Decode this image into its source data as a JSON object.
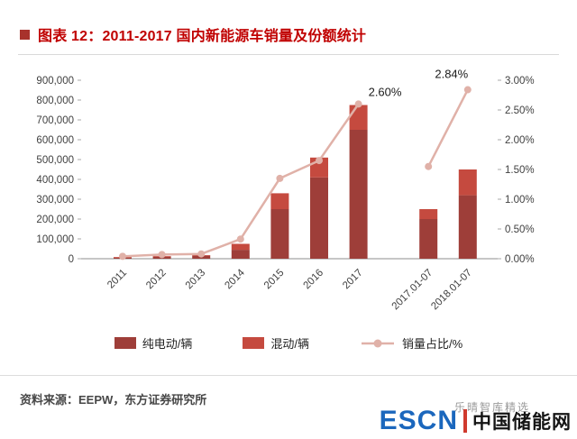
{
  "header": {
    "title": "图表 12：2011-2017 国内新能源车销量及份额统计",
    "accent_color": "#c00000",
    "bullet_color": "#a8322c"
  },
  "chart_data": {
    "type": "bar",
    "subtype": "stacked-bar-with-line",
    "title": "图表 12：2011-2017 国内新能源车销量及份额统计",
    "categories": [
      "2011",
      "2012",
      "2013",
      "2014",
      "2015",
      "2016",
      "2017",
      "2017.01-07",
      "2018.01-07"
    ],
    "series": [
      {
        "name": "纯电动/辆",
        "type": "bar",
        "color": "#9e3e39",
        "values": [
          5700,
          11000,
          15000,
          45000,
          250000,
          410000,
          650000,
          200000,
          320000
        ]
      },
      {
        "name": "混动/辆",
        "type": "bar",
        "color": "#c54a3f",
        "values": [
          2500,
          1800,
          3000,
          30000,
          80000,
          100000,
          125000,
          50000,
          130000
        ]
      }
    ],
    "line_series": {
      "name": "销量占比/%",
      "type": "line",
      "color": "#e0b1a8",
      "axis": "right",
      "break_after_index": 6,
      "values": [
        0.04,
        0.07,
        0.08,
        0.33,
        1.35,
        1.65,
        2.6,
        1.55,
        2.84
      ]
    },
    "annotations": [
      {
        "index": 6,
        "text": "2.60%"
      },
      {
        "index": 8,
        "text": "2.84%"
      }
    ],
    "left_axis": {
      "min": 0,
      "max": 900000,
      "step": 100000,
      "tick_labels": [
        "0",
        "100,000",
        "200,000",
        "300,000",
        "400,000",
        "500,000",
        "600,000",
        "700,000",
        "800,000",
        "900,000"
      ]
    },
    "right_axis": {
      "min": 0,
      "max": 3,
      "step": 0.5,
      "tick_labels": [
        "0.00%",
        "0.50%",
        "1.00%",
        "1.50%",
        "2.00%",
        "2.50%",
        "3.00%"
      ]
    },
    "grid": false,
    "legend_position": "bottom"
  },
  "footer": {
    "source": "资料来源：EEPW，东方证券研究所",
    "watermark": "乐晴智库精选",
    "logo": {
      "escn": "ESCN",
      "cn": "中国储能网",
      "escn_color": "#1b67bd",
      "divider_color": "#d03a2e",
      "cn_color": "#141414"
    }
  }
}
